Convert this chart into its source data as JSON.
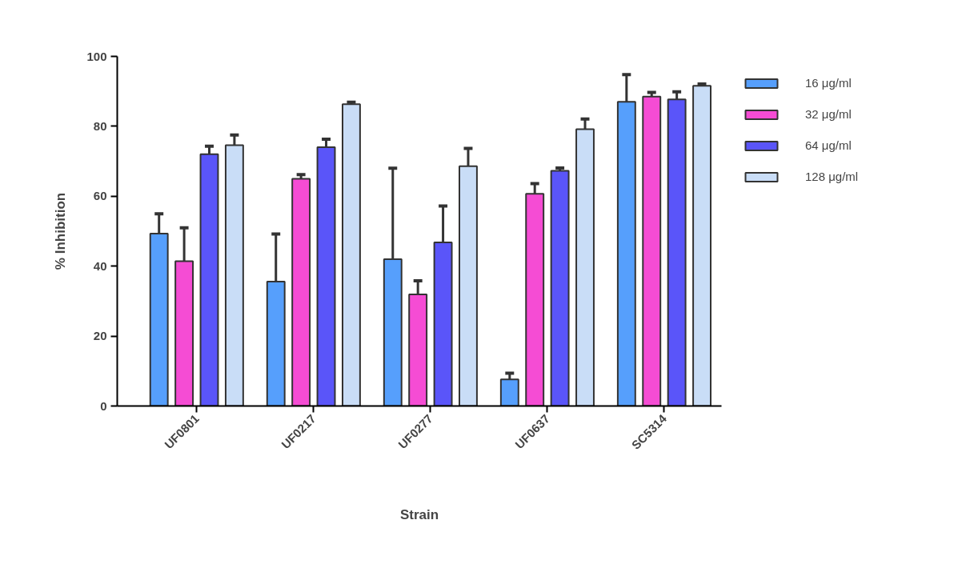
{
  "chart_data": {
    "type": "bar",
    "xlabel": "Strain",
    "ylabel": "% Inhibition",
    "categories": [
      "UF0801",
      "UF0217",
      "UF0277",
      "UF0637",
      "SC5314"
    ],
    "ylim": [
      0,
      100
    ],
    "yticks": [
      0,
      20,
      40,
      60,
      80,
      100
    ],
    "grid": false,
    "legend": "right",
    "series": [
      {
        "name": "16 μg/ml",
        "color": "#569ffc",
        "values": [
          49.3,
          35.6,
          42,
          7.6,
          87
        ],
        "errors": [
          [
            49.3,
            55
          ],
          [
            35.6,
            49.2
          ],
          [
            42,
            68
          ],
          [
            7.6,
            9.4
          ],
          [
            87,
            94.8
          ]
        ]
      },
      {
        "name": "32 μg/ml",
        "color": "#f54cd4",
        "values": [
          41.4,
          65,
          31.9,
          60.7,
          88.5
        ],
        "errors": [
          [
            41.4,
            51
          ],
          [
            65,
            66.2
          ],
          [
            31.9,
            35.8
          ],
          [
            60.7,
            63.6
          ],
          [
            88.5,
            89.7
          ]
        ]
      },
      {
        "name": "64 μg/ml",
        "color": "#5a55f9",
        "values": [
          72,
          74,
          46.8,
          67.3,
          87.7
        ],
        "errors": [
          [
            72,
            74.3
          ],
          [
            74,
            76.3
          ],
          [
            46.8,
            57.2
          ],
          [
            67.3,
            68.1
          ],
          [
            87.7,
            89.9
          ]
        ]
      },
      {
        "name": "128 μg/ml",
        "color": "#c9ddf7",
        "values": [
          74.6,
          86.3,
          68.6,
          79.2,
          91.6
        ],
        "errors": [
          [
            74.6,
            77.5
          ],
          [
            86.3,
            86.9
          ],
          [
            68.6,
            73.7
          ],
          [
            79.2,
            82.1
          ],
          [
            91.6,
            92.1
          ]
        ]
      }
    ]
  }
}
